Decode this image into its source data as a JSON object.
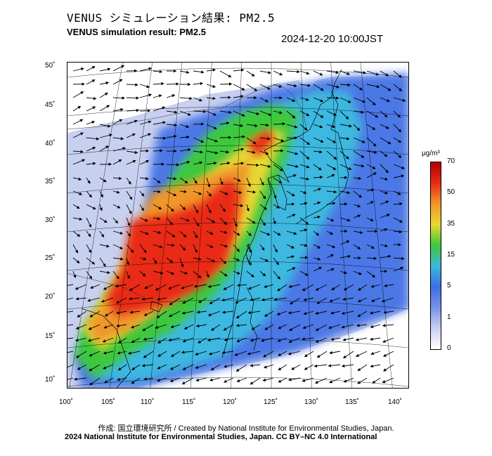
{
  "header": {
    "title_ja": "VENUS シミュレーション結果: PM2.5",
    "title_en": "VENUS simulation result: PM2.5",
    "timestamp": "2024-12-20 10:00JST"
  },
  "map": {
    "lat_labels": [
      "50˚",
      "45˚",
      "40˚",
      "35˚",
      "30˚",
      "25˚",
      "20˚",
      "15˚",
      "10˚"
    ],
    "lon_labels": [
      "100˚",
      "105˚",
      "110˚",
      "115˚",
      "120˚",
      "125˚",
      "130˚",
      "135˚",
      "140˚"
    ],
    "field_colors": {
      "background": "#ffffff",
      "very_low": "#c8d0f0",
      "low": "#7894e8",
      "blue": "#3c6ee6",
      "cyan": "#3cb8e0",
      "green": "#3cc83c",
      "yellow": "#e8d832",
      "orange": "#f0962a",
      "red": "#e82a14"
    }
  },
  "colorbar": {
    "unit": "μg/m³",
    "labels": [
      "70",
      "50",
      "35",
      "15",
      "5",
      "1",
      "0"
    ],
    "colors": [
      "#b40000",
      "#e82a14",
      "#f0962a",
      "#e8d832",
      "#3cc83c",
      "#3cb8e0",
      "#3c6ee6",
      "#7894e8",
      "#c8d0f0",
      "#ffffff"
    ]
  },
  "footer": {
    "credit": "作成: 国立環境研究所 / Created by National Institute for Environmental Studies, Japan.",
    "license": "2024 National Institute for Environmental Studies, Japan. CC BY–NC 4.0 International"
  }
}
